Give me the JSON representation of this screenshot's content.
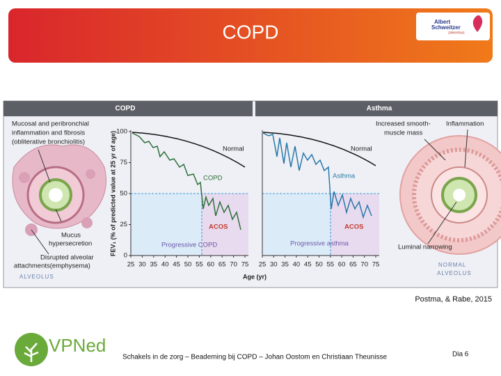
{
  "header": {
    "title": "COPD",
    "logo": [
      "Albert",
      "Schweitzer",
      "ziekenhuis"
    ]
  },
  "figure": {
    "panel_titles": [
      "COPD",
      "Asthma"
    ],
    "left_annotations": [
      "Mucosal and peribronchial",
      "inflammation and fibrosis",
      "(obliterative bronchiolitis)",
      "Mucus",
      "hypersecretion",
      "Disrupted alveolar",
      "attachments(emphysema)",
      "ALVEOLUS"
    ],
    "right_annotations": [
      "Increased smooth-",
      "muscle mass",
      "Inflammation",
      "Luminal narrowing",
      "NORMAL",
      "ALVEOLUS"
    ],
    "y_axis_label": "FEV₁ (% of predicted value at 25 yr of age)",
    "x_axis_label": "Age (yr)",
    "yticks": [
      100,
      75,
      50,
      25,
      0
    ],
    "xticks": [
      25,
      30,
      35,
      40,
      45,
      50,
      55,
      60,
      65,
      70,
      75
    ],
    "copd_labels": [
      "Normal",
      "COPD",
      "ACOS",
      "Progressive COPD"
    ],
    "asthma_labels": [
      "Normal",
      "Asthma",
      "ACOS",
      "Progressive asthma"
    ]
  },
  "citation": "Postma, & Rabe, 2015",
  "footer": {
    "brand": "VPNed",
    "text": "Schakels in de zorg – Beademing bij COPD – Johan Oostom en Christiaan Theunisse",
    "slide": "Dia 6"
  }
}
